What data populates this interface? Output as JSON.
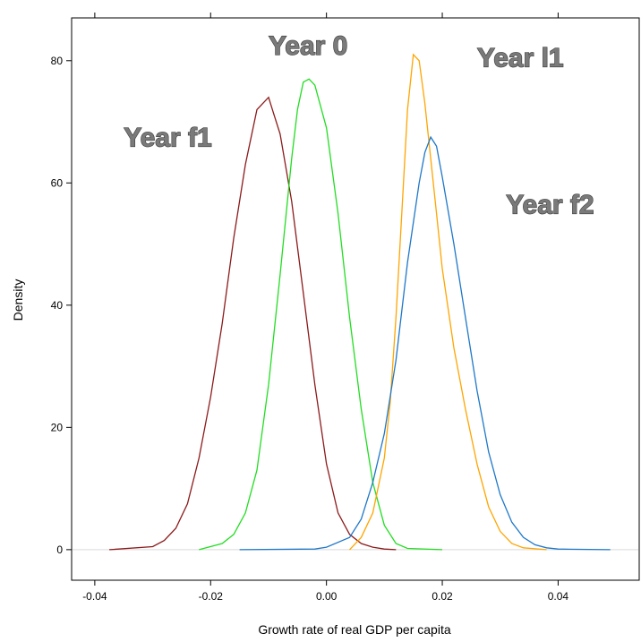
{
  "chart_data": {
    "type": "line",
    "title": "",
    "xlabel": "Growth rate of real GDP per capita",
    "ylabel": "Density",
    "xlim": [
      -0.044,
      0.054
    ],
    "ylim": [
      -5,
      87
    ],
    "x_ticks": [
      -0.04,
      -0.02,
      0.0,
      0.02,
      0.04
    ],
    "x_tick_labels": [
      "-0.04",
      "-0.02",
      "0.00",
      "0.02",
      "0.04"
    ],
    "y_ticks": [
      0,
      20,
      40,
      60,
      80
    ],
    "y_tick_labels": [
      "0",
      "20",
      "40",
      "60",
      "80"
    ],
    "grid": false,
    "legend": "none",
    "zero_line_color": "#d9d9d9",
    "series": [
      {
        "name": "Year f1",
        "color": "#8b1a1a",
        "x": [
          -0.0375,
          -0.03,
          -0.028,
          -0.026,
          -0.024,
          -0.022,
          -0.02,
          -0.018,
          -0.016,
          -0.014,
          -0.012,
          -0.011,
          -0.01,
          -0.009,
          -0.008,
          -0.006,
          -0.004,
          -0.002,
          0.0,
          0.002,
          0.004,
          0.006,
          0.008,
          0.01,
          0.012
        ],
        "y": [
          0,
          0.5,
          1.5,
          3.5,
          7.5,
          15,
          25,
          37,
          51,
          63,
          72,
          73,
          74,
          71,
          68,
          57,
          42,
          27,
          14,
          6,
          2.5,
          1,
          0.4,
          0.1,
          0
        ]
      },
      {
        "name": "Year 0",
        "color": "#22dd22",
        "x": [
          -0.022,
          -0.018,
          -0.016,
          -0.014,
          -0.012,
          -0.01,
          -0.008,
          -0.006,
          -0.005,
          -0.004,
          -0.003,
          -0.002,
          0.0,
          0.002,
          0.004,
          0.006,
          0.008,
          0.01,
          0.012,
          0.014,
          0.02
        ],
        "y": [
          0,
          1,
          2.5,
          6,
          13,
          27,
          45,
          64,
          72,
          76.5,
          77,
          76,
          69,
          55,
          38,
          23,
          11,
          4,
          1,
          0.2,
          0
        ]
      },
      {
        "name": "Year l1",
        "color": "#ffa500",
        "x": [
          0.004,
          0.006,
          0.008,
          0.01,
          0.011,
          0.012,
          0.013,
          0.014,
          0.015,
          0.016,
          0.017,
          0.018,
          0.019,
          0.02,
          0.022,
          0.024,
          0.026,
          0.028,
          0.03,
          0.032,
          0.034,
          0.038
        ],
        "y": [
          0,
          2,
          6,
          15,
          24,
          38,
          55,
          72,
          81,
          80,
          73,
          64,
          55,
          46,
          33,
          23,
          14,
          7,
          3,
          1,
          0.3,
          0
        ]
      },
      {
        "name": "Year f2",
        "color": "#1f78c8",
        "x": [
          -0.015,
          -0.002,
          0.0,
          0.004,
          0.006,
          0.008,
          0.01,
          0.012,
          0.014,
          0.016,
          0.017,
          0.018,
          0.019,
          0.02,
          0.022,
          0.024,
          0.026,
          0.028,
          0.03,
          0.032,
          0.034,
          0.036,
          0.038,
          0.04,
          0.049
        ],
        "y": [
          0,
          0.1,
          0.4,
          2,
          5,
          11,
          19,
          31,
          47,
          60,
          65,
          67.5,
          66,
          61,
          50,
          38,
          26,
          16,
          9,
          4.5,
          2,
          0.8,
          0.3,
          0.1,
          0
        ]
      }
    ],
    "annotations": [
      {
        "text": "Year f1",
        "x": -0.035,
        "y": 66
      },
      {
        "text": "Year 0",
        "x": -0.01,
        "y": 81
      },
      {
        "text": "Year l1",
        "x": 0.026,
        "y": 79
      },
      {
        "text": "Year f2",
        "x": 0.031,
        "y": 55
      }
    ]
  }
}
